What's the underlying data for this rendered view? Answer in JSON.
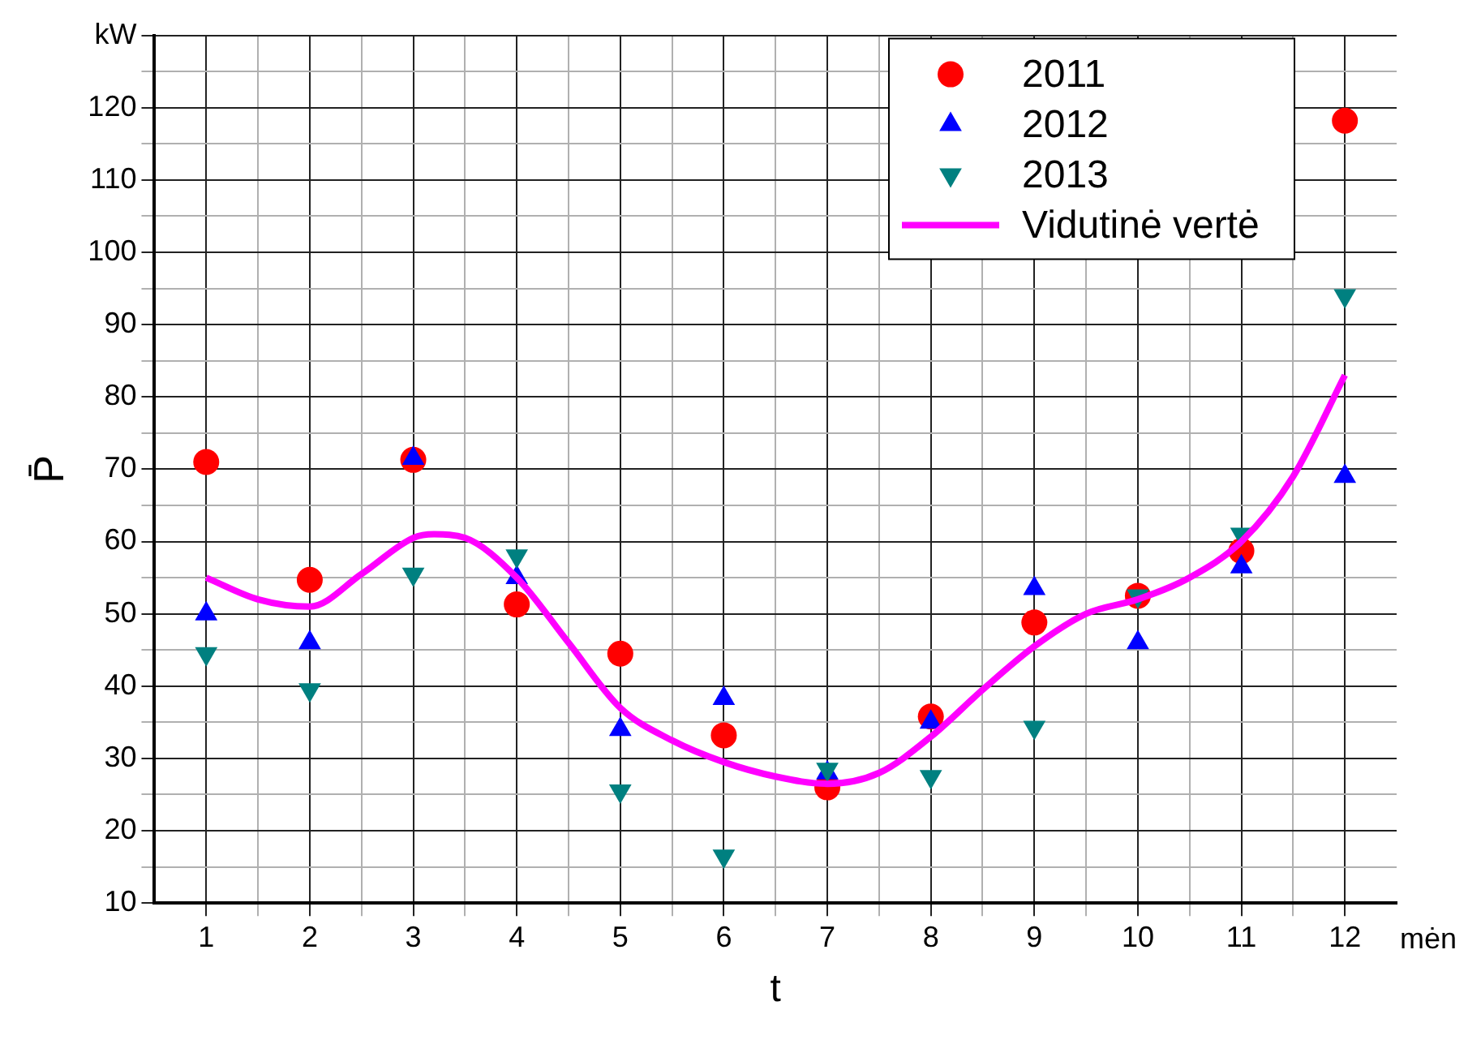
{
  "chart_data": {
    "type": "scatter",
    "xlabel": "t",
    "ylabel": "P̄",
    "annotations": [
      "mėn"
    ],
    "x": [
      1,
      2,
      3,
      4,
      5,
      6,
      7,
      8,
      9,
      10,
      11,
      12
    ],
    "xlim": [
      0.5,
      12.5
    ],
    "xticks": [
      1,
      {
        "value": 1.5,
        "label": null
      },
      2,
      {
        "value": 2.5,
        "label": null
      },
      3,
      {
        "value": 3.5,
        "label": null
      },
      4,
      {
        "value": 4.5,
        "label": null
      },
      5,
      {
        "value": 5.5,
        "label": null
      },
      6,
      {
        "value": 6.5,
        "label": null
      },
      7,
      {
        "value": 7.5,
        "label": null
      },
      8,
      {
        "value": 8.5,
        "label": null
      },
      9,
      {
        "value": 9.5,
        "label": null
      },
      10,
      {
        "value": 10.5,
        "label": null
      },
      11,
      {
        "value": 11.5,
        "label": null
      },
      12
    ],
    "ylim": [
      10,
      130
    ],
    "yticks": [
      10,
      {
        "value": 15,
        "label": null
      },
      20,
      {
        "value": 25,
        "label": null
      },
      30,
      {
        "value": 35,
        "label": null
      },
      40,
      {
        "value": 45,
        "label": null
      },
      50,
      {
        "value": 55,
        "label": null
      },
      60,
      {
        "value": 65,
        "label": null
      },
      70,
      {
        "value": 75,
        "label": null
      },
      80,
      {
        "value": 85,
        "label": null
      },
      90,
      {
        "value": 95,
        "label": null
      },
      100,
      {
        "value": 105,
        "label": null
      },
      110,
      {
        "value": 115,
        "label": null
      },
      120,
      {
        "value": 125,
        "label": null
      },
      {
        "value": 130,
        "label": "kW"
      }
    ],
    "grid": true,
    "legend": "top right",
    "series": [
      {
        "name": "2011",
        "marker": "circle",
        "color": "#ff0000",
        "values": [
          71,
          54.7,
          71.3,
          51.3,
          44.5,
          33.2,
          26,
          35.8,
          48.8,
          52.5,
          58.7,
          118.2
        ]
      },
      {
        "name": "2012",
        "marker": "triangle",
        "color": "#0000ff",
        "values": [
          50,
          46,
          71.5,
          55,
          34,
          38.3,
          28,
          35,
          53.5,
          46,
          56.5,
          69
        ]
      },
      {
        "name": "2013",
        "marker": "triangle-down",
        "color": "#008080",
        "values": [
          44.5,
          39.5,
          55.5,
          58,
          25.5,
          16.5,
          28.5,
          27.5,
          34.3,
          52.5,
          61,
          94
        ]
      },
      {
        "name": "Vidutinė vertė",
        "type": "line",
        "marker": "none",
        "color": "#ff00ff",
        "x": [
          1,
          1.5,
          2,
          2.5,
          3,
          3.2,
          3.5,
          4,
          4.5,
          5,
          5.5,
          6,
          6.5,
          7,
          7.5,
          8,
          8.5,
          9,
          9.5,
          10,
          10.5,
          11,
          11.5,
          12
        ],
        "values": [
          55,
          52,
          51,
          55.5,
          60.5,
          61,
          60.5,
          55,
          46,
          37,
          32.5,
          29.5,
          27.5,
          26.5,
          28,
          33,
          39.5,
          45.5,
          50,
          52,
          55,
          60,
          69,
          83
        ]
      }
    ]
  }
}
